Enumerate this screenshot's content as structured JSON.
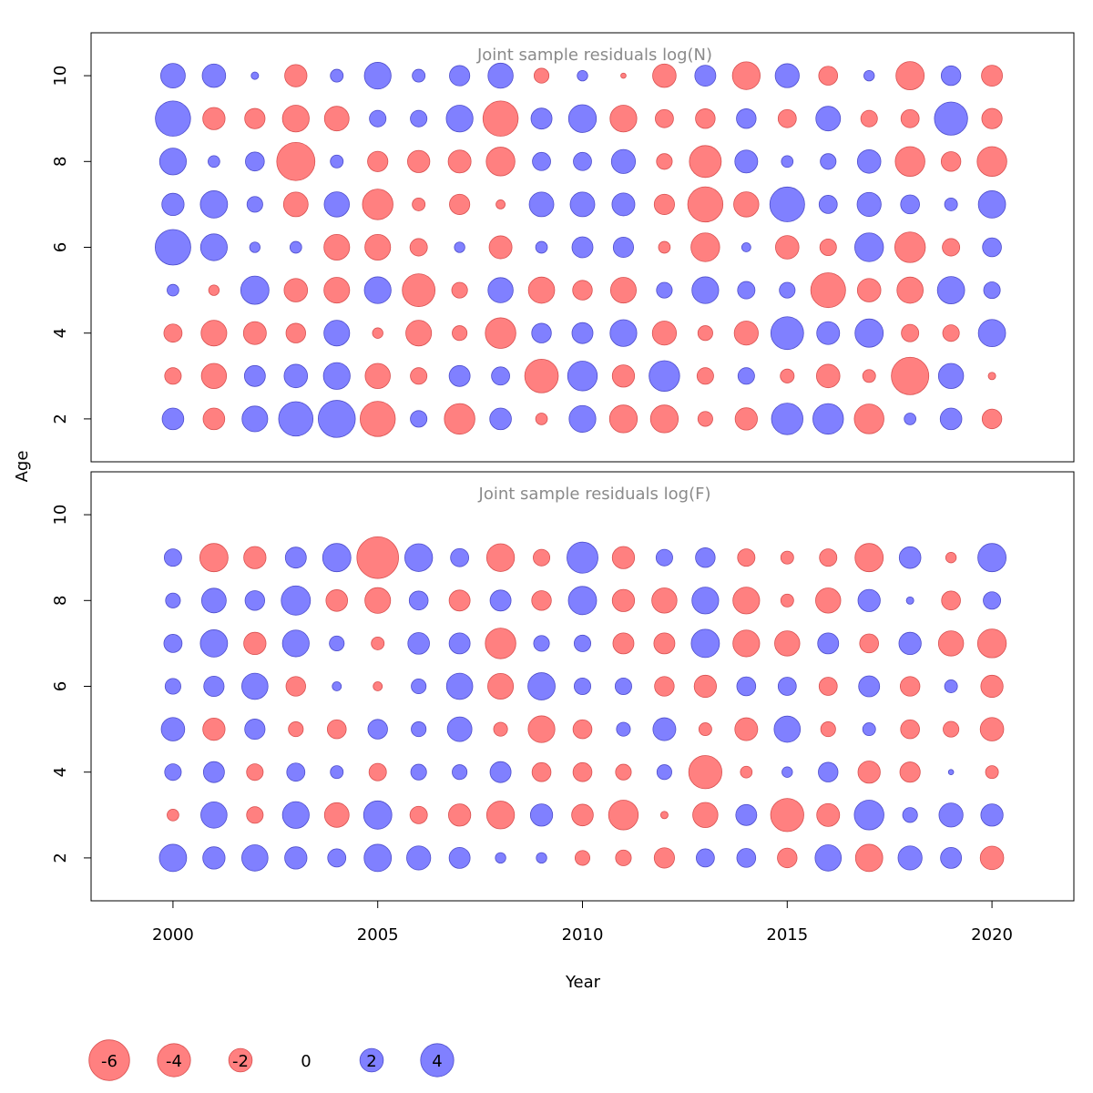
{
  "chart_data": {
    "type": "scatter",
    "subtype": "bubble",
    "xlabel": "Year",
    "ylabel": "Age",
    "x_ticks": [
      2000,
      2005,
      2010,
      2015,
      2020
    ],
    "y_ticks": [
      2,
      4,
      6,
      8,
      10
    ],
    "xlim": [
      1998,
      2022
    ],
    "ylim": [
      1,
      11
    ],
    "colors": {
      "positive": "#8080ff",
      "negative": "#ff8080",
      "positive_edge": "#4d4dcc",
      "negative_edge": "#d95050"
    },
    "years": [
      2000,
      2001,
      2002,
      2003,
      2004,
      2005,
      2006,
      2007,
      2008,
      2009,
      2010,
      2011,
      2012,
      2013,
      2014,
      2015,
      2016,
      2017,
      2018,
      2019,
      2020
    ],
    "panels": [
      {
        "title": "Joint sample residuals log(N)",
        "ages": [
          2,
          3,
          4,
          5,
          6,
          7,
          8,
          9,
          10
        ],
        "residuals": [
          [
            1.7,
            -1.7,
            2.4,
            4.3,
            5.0,
            -4.5,
            1.0,
            -3.4,
            1.7,
            -0.5,
            2.6,
            -2.8,
            -2.8,
            -0.8,
            -1.8,
            3.6,
            3.4,
            -3.2,
            0.5,
            1.7,
            -1.4
          ],
          [
            -1.0,
            -2.3,
            1.6,
            2.0,
            2.6,
            -2.3,
            -1.0,
            1.6,
            1.2,
            -4.1,
            3.2,
            -1.8,
            3.4,
            -1.0,
            1.0,
            -0.7,
            -2.0,
            -0.6,
            -5.1,
            2.3,
            -0.2
          ],
          [
            -1.2,
            -2.4,
            -1.9,
            -1.4,
            2.4,
            -0.4,
            -2.4,
            -0.8,
            -3.4,
            1.4,
            1.6,
            2.6,
            -2.1,
            -0.8,
            -2.1,
            3.9,
            1.9,
            2.9,
            -1.1,
            -1.0,
            2.7
          ],
          [
            0.5,
            -0.4,
            2.9,
            -2.0,
            -2.4,
            2.6,
            -3.9,
            -0.9,
            2.3,
            -2.5,
            -1.4,
            -2.4,
            0.9,
            2.6,
            1.1,
            0.9,
            -4.4,
            -2.0,
            -2.5,
            2.7,
            1.0
          ],
          [
            4.6,
            2.6,
            0.4,
            0.5,
            -2.4,
            -2.4,
            -1.1,
            0.4,
            -1.9,
            0.5,
            1.6,
            1.5,
            -0.5,
            -3.0,
            0.3,
            -2.0,
            -1.0,
            3.0,
            -3.4,
            -1.1,
            1.3
          ],
          [
            1.8,
            2.7,
            0.9,
            -2.2,
            2.3,
            -3.4,
            -0.6,
            -1.5,
            -0.3,
            2.2,
            2.2,
            1.9,
            -1.5,
            -4.5,
            -2.3,
            4.4,
            1.2,
            2.1,
            1.3,
            0.6,
            2.7
          ],
          [
            2.6,
            0.5,
            1.3,
            -5.3,
            0.6,
            -1.5,
            -1.8,
            -1.9,
            -3.0,
            1.2,
            1.2,
            2.1,
            -0.9,
            -3.7,
            1.9,
            0.5,
            0.9,
            2.0,
            -3.2,
            -1.4,
            -3.2
          ],
          [
            4.5,
            -1.8,
            -1.5,
            -2.6,
            -2.2,
            1.0,
            1.0,
            2.6,
            -4.5,
            1.6,
            2.8,
            -2.6,
            -1.2,
            -1.4,
            1.4,
            -1.2,
            2.2,
            -1.0,
            -1.2,
            4.0,
            -1.5
          ],
          [
            2.2,
            2.0,
            0.2,
            -1.8,
            0.6,
            2.6,
            0.6,
            1.5,
            2.3,
            -0.8,
            0.4,
            -0.1,
            -2.0,
            1.6,
            -2.8,
            2.1,
            -1.3,
            0.4,
            -2.9,
            1.4,
            -1.6
          ]
        ]
      },
      {
        "title": "Joint sample residuals log(F)",
        "ages": [
          2,
          3,
          4,
          5,
          6,
          7,
          8,
          9
        ],
        "residuals": [
          [
            2.7,
            1.8,
            2.5,
            1.8,
            1.2,
            2.7,
            2.1,
            1.6,
            0.4,
            0.4,
            -0.8,
            -0.9,
            -1.5,
            1.2,
            1.3,
            -1.4,
            2.5,
            -2.7,
            2.1,
            1.6,
            -2.0
          ],
          [
            -0.5,
            2.5,
            -1.0,
            2.6,
            -2.2,
            2.9,
            -1.1,
            -1.8,
            -2.8,
            1.8,
            -1.7,
            -3.2,
            -0.2,
            -2.3,
            1.6,
            -4.0,
            -1.9,
            3.2,
            0.8,
            2.1,
            1.8
          ],
          [
            1.0,
            1.6,
            -1.0,
            1.2,
            0.6,
            -1.1,
            0.9,
            0.8,
            1.6,
            -1.3,
            -1.3,
            -0.9,
            0.8,
            -4.0,
            -0.5,
            0.4,
            1.4,
            -1.8,
            -1.5,
            0.1,
            -0.6
          ],
          [
            2.0,
            -1.8,
            1.5,
            -0.8,
            -1.3,
            1.4,
            0.8,
            2.2,
            -0.7,
            -2.6,
            -1.3,
            0.7,
            1.9,
            -0.6,
            -1.9,
            2.5,
            -0.8,
            0.6,
            -1.3,
            -0.9,
            -2.0
          ],
          [
            0.9,
            1.5,
            2.5,
            -1.4,
            0.3,
            -0.3,
            0.8,
            2.5,
            -2.4,
            2.7,
            1.0,
            1.0,
            -1.4,
            -1.8,
            1.3,
            1.2,
            -1.2,
            1.6,
            -1.4,
            0.6,
            -1.8
          ],
          [
            1.2,
            2.7,
            -1.8,
            2.6,
            0.8,
            -0.6,
            1.7,
            1.6,
            -3.4,
            0.9,
            1.0,
            -1.6,
            -1.6,
            2.9,
            -2.6,
            -2.3,
            1.6,
            -1.3,
            1.8,
            -2.3,
            -3.0
          ],
          [
            0.8,
            2.2,
            1.4,
            3.1,
            -1.7,
            -2.4,
            1.3,
            -1.6,
            1.6,
            -1.4,
            2.9,
            -1.8,
            -2.3,
            2.6,
            -2.6,
            -0.6,
            -2.3,
            1.8,
            0.2,
            -1.3,
            1.1
          ],
          [
            1.1,
            -2.9,
            -1.8,
            1.6,
            2.9,
            -6.3,
            2.8,
            1.2,
            -2.8,
            -1.0,
            3.5,
            -1.8,
            1.0,
            1.4,
            -1.1,
            -0.6,
            -1.1,
            -2.9,
            1.7,
            -0.4,
            2.9
          ]
        ]
      }
    ],
    "legend": {
      "entries": [
        {
          "label": "-6",
          "value": -6
        },
        {
          "label": "-4",
          "value": -4
        },
        {
          "label": "-2",
          "value": -2
        },
        {
          "label": "0",
          "value": 0
        },
        {
          "label": "2",
          "value": 2
        },
        {
          "label": "4",
          "value": 4
        }
      ]
    }
  }
}
